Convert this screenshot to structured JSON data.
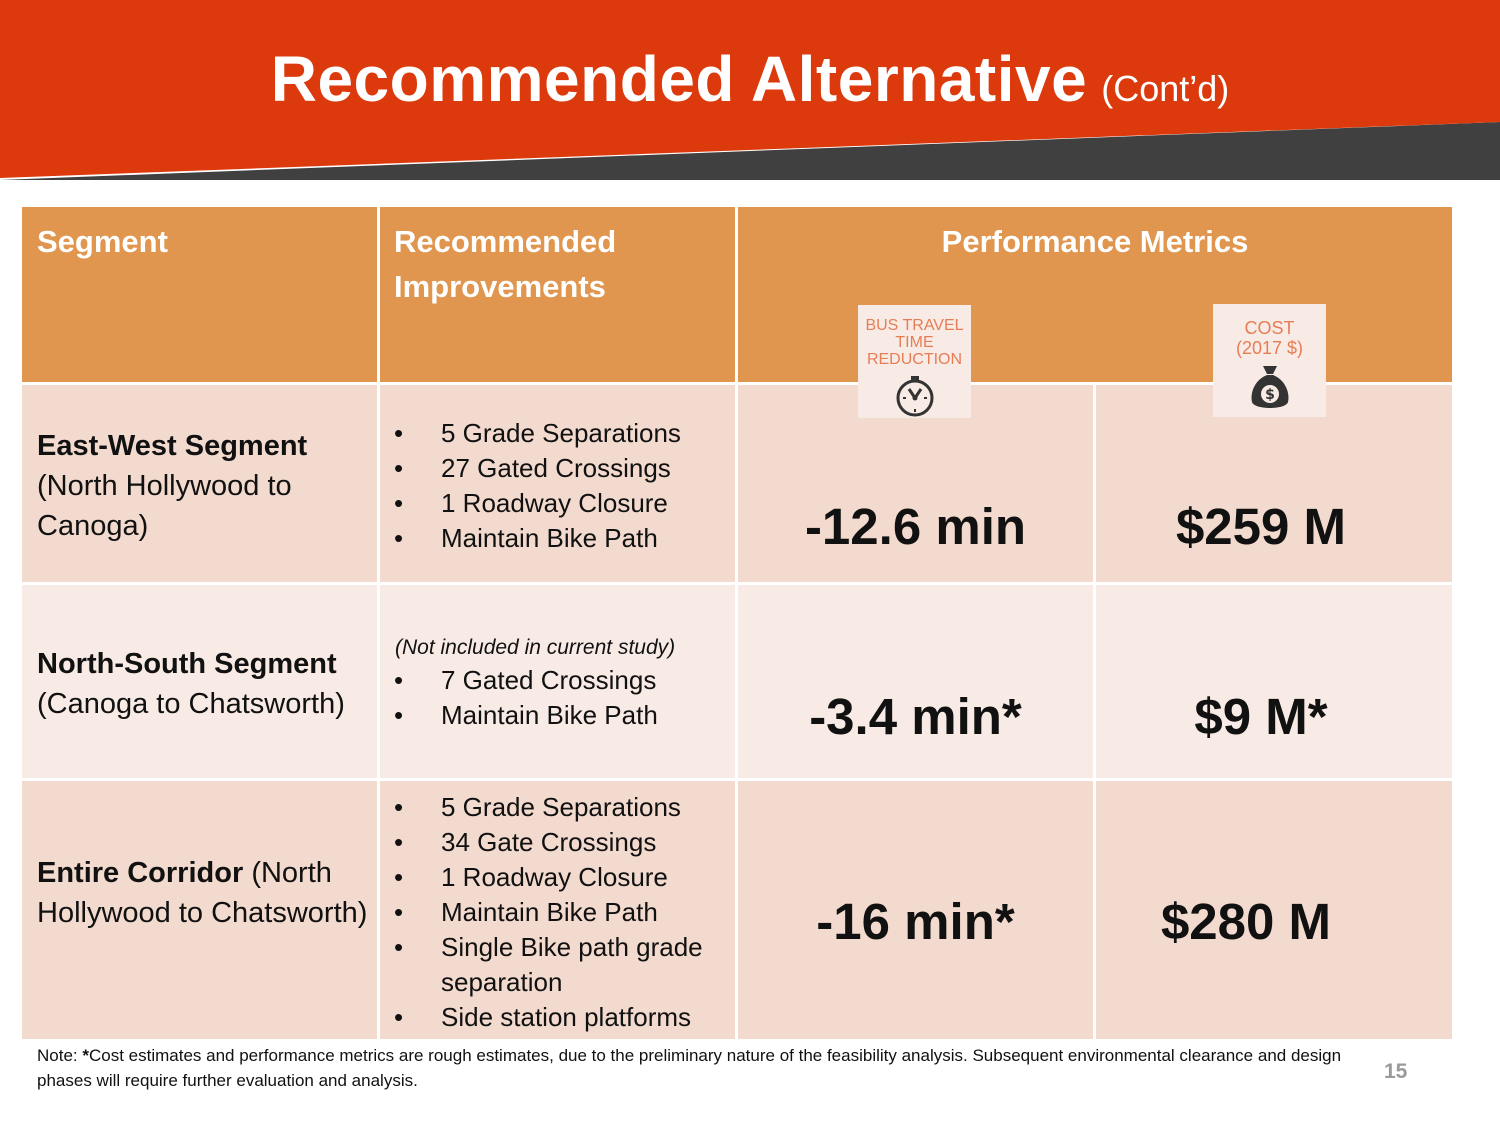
{
  "title": {
    "main": "Recommended Alternative",
    "sub": "(Cont’d)"
  },
  "table": {
    "headers": {
      "segment": "Segment",
      "improvements_line1": "Recommended",
      "improvements_line2": "Improvements",
      "metrics": "Performance Metrics"
    },
    "metric_icons": {
      "bus_time": {
        "line1": "BUS TRAVEL",
        "line2": "TIME",
        "line3": "REDUCTION",
        "icon": "stopwatch-icon"
      },
      "cost": {
        "line1": "COST",
        "line2": "(2017 $)",
        "icon": "money-bag-icon"
      }
    },
    "rows": [
      {
        "segment_name": "East-West Segment",
        "segment_detail": "(North Hollywood to Canoga)",
        "improvements": [
          "5 Grade Separations",
          "27 Gated Crossings",
          "1 Roadway Closure",
          "Maintain Bike Path"
        ],
        "bus_time": "-12.6 min",
        "cost": "$259 M"
      },
      {
        "segment_name": "North-South Segment",
        "segment_detail": "(Canoga to Chatsworth)",
        "note": "(Not included in current study)",
        "improvements": [
          "7 Gated Crossings",
          "Maintain Bike Path"
        ],
        "bus_time": "-3.4 min*",
        "cost": "$9 M*"
      },
      {
        "segment_name": "Entire Corridor",
        "segment_detail": "(North Hollywood to Chatsworth)",
        "improvements": [
          "5 Grade Separations",
          "34 Gate Crossings",
          "1 Roadway Closure",
          "Maintain Bike Path",
          "Single Bike path grade separation",
          "Side station platforms"
        ],
        "bus_time": "-16 min*",
        "cost": "$280 M"
      }
    ]
  },
  "footnote": {
    "prefix": "Note: ",
    "star": "*",
    "text": "Cost estimates and performance metrics are rough estimates, due to the preliminary nature of the feasibility analysis. Subsequent environmental clearance and design phases will require further evaluation and analysis."
  },
  "page_number": "15",
  "colors": {
    "banner_red": "#dc3a0c",
    "banner_gray": "#404040",
    "header_orange": "#e0964e",
    "row_dark": "#f3dace",
    "row_light": "#f8ebe5"
  }
}
